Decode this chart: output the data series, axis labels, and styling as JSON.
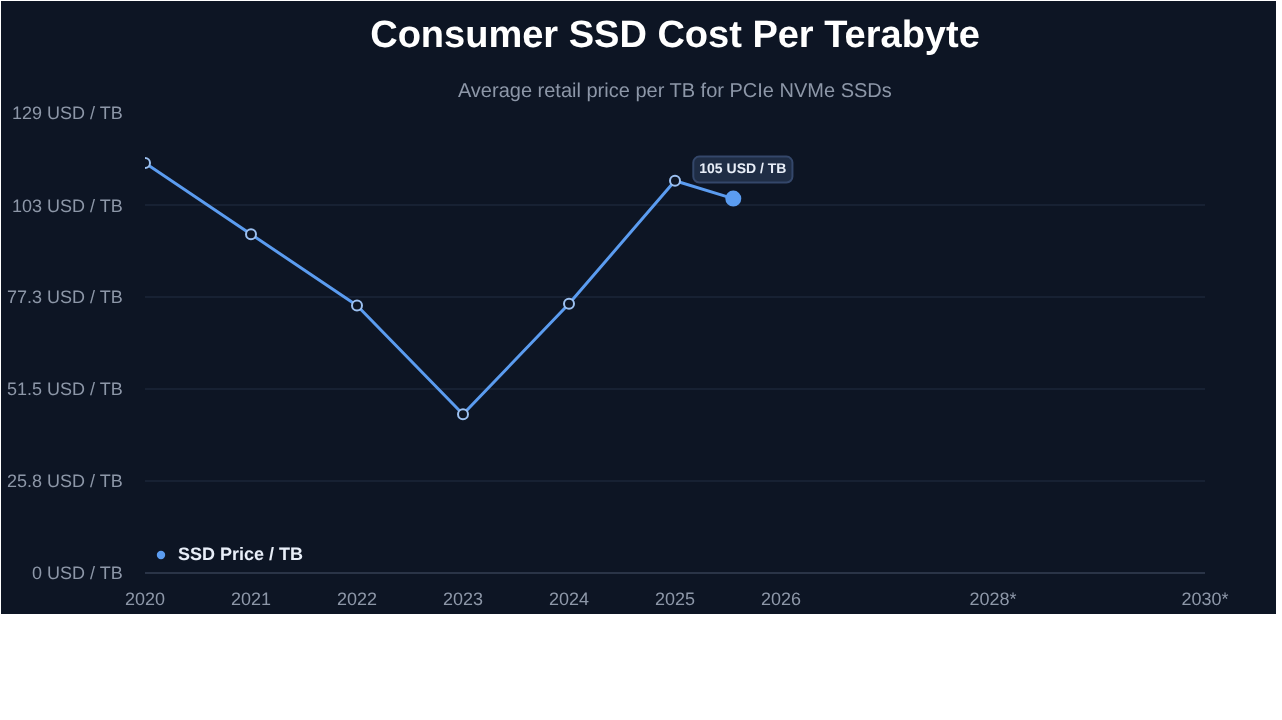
{
  "chart_data": {
    "type": "line",
    "title": "Consumer SSD Cost Per Terabyte",
    "subtitle": "Average retail price per TB for PCIe NVMe SSDs",
    "x": [
      2020,
      2021,
      2022,
      2023,
      2024,
      2025,
      2025.55
    ],
    "series": [
      {
        "name": "SSD Price / TB",
        "color": "#5b9cf0",
        "values": [
          115,
          95,
          75,
          44.5,
          75.5,
          110,
          105
        ]
      }
    ],
    "xlim": [
      2020,
      2030
    ],
    "xticks": [
      2020,
      2021,
      2022,
      2023,
      2024,
      2025,
      2026,
      {
        "value": 2028,
        "label": "2028*"
      },
      {
        "value": 2030,
        "label": "2030*"
      }
    ],
    "ylim": [
      0,
      129
    ],
    "yticks": [
      {
        "value": 0,
        "label": "0 USD / TB"
      },
      {
        "value": 25.8,
        "label": "25.8 USD / TB"
      },
      {
        "value": 51.5,
        "label": "51.5 USD / TB"
      },
      {
        "value": 77.3,
        "label": "77.3 USD / TB"
      },
      {
        "value": 103,
        "label": "103 USD / TB"
      },
      {
        "value": 129,
        "label": "129 USD / TB"
      }
    ],
    "annotations": [
      {
        "text": "105 USD / TB",
        "x": 2025.55,
        "y": 105
      }
    ],
    "grid": "y",
    "legend": "bottom left",
    "marker": "circle",
    "line_style": "solid"
  }
}
